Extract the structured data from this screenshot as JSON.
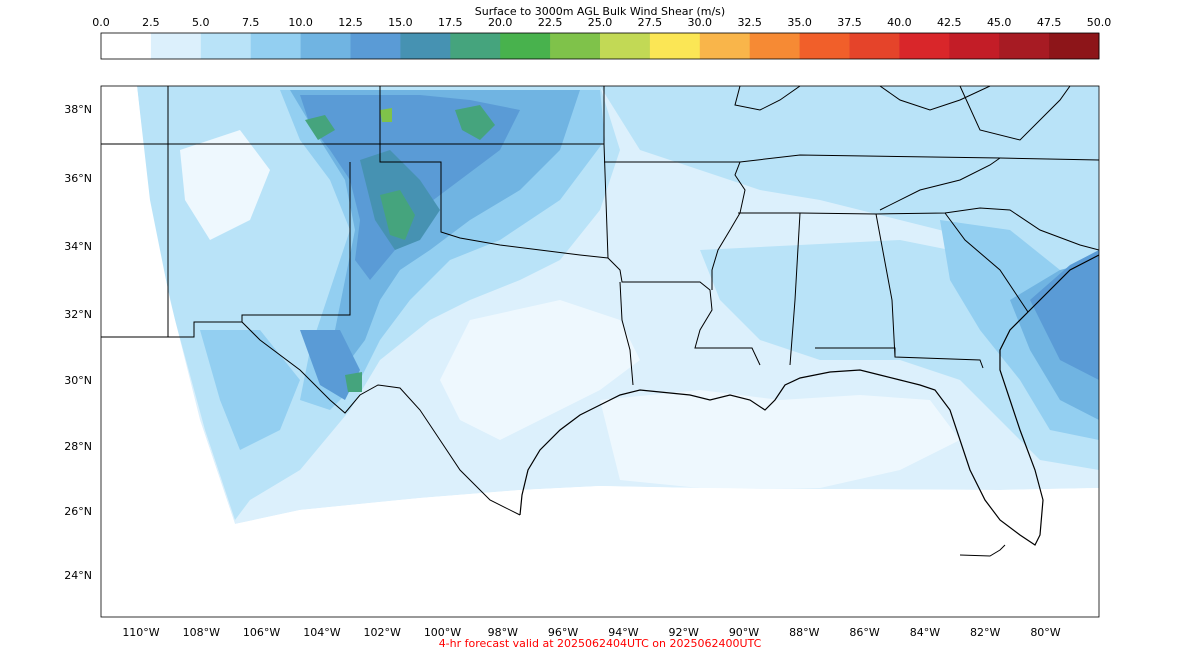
{
  "colorbar": {
    "title": "Surface to 3000m AGL Bulk Wind Shear (m/s)",
    "ticks": [
      "0.0",
      "2.5",
      "5.0",
      "7.5",
      "10.0",
      "12.5",
      "15.0",
      "17.5",
      "20.0",
      "22.5",
      "25.0",
      "27.5",
      "30.0",
      "32.5",
      "35.0",
      "37.5",
      "40.0",
      "42.5",
      "45.0",
      "47.5",
      "50.0"
    ],
    "colors": [
      "#ffffff",
      "#dcf0fc",
      "#b9e3f8",
      "#93cff1",
      "#70b4e2",
      "#5a9bd6",
      "#4692b2",
      "#45a47d",
      "#48b24d",
      "#7fc24a",
      "#c2d955",
      "#fbe655",
      "#f9b54a",
      "#f68a34",
      "#f15f2a",
      "#e5442a",
      "#d9262a",
      "#c31d27",
      "#a71b23",
      "#8d1519"
    ]
  },
  "map": {
    "lon_labels": [
      "110°W",
      "108°W",
      "106°W",
      "104°W",
      "102°W",
      "100°W",
      "98°W",
      "96°W",
      "94°W",
      "92°W",
      "90°W",
      "88°W",
      "86°W",
      "84°W",
      "82°W",
      "80°W"
    ],
    "lat_labels": [
      "38°N",
      "36°N",
      "34°N",
      "32°N",
      "30°N",
      "28°N",
      "26°N",
      "24°N"
    ]
  },
  "footer": {
    "text": "4-hr forecast valid at 2025062404UTC on 2025062400UTC",
    "color": "#ff0000"
  }
}
